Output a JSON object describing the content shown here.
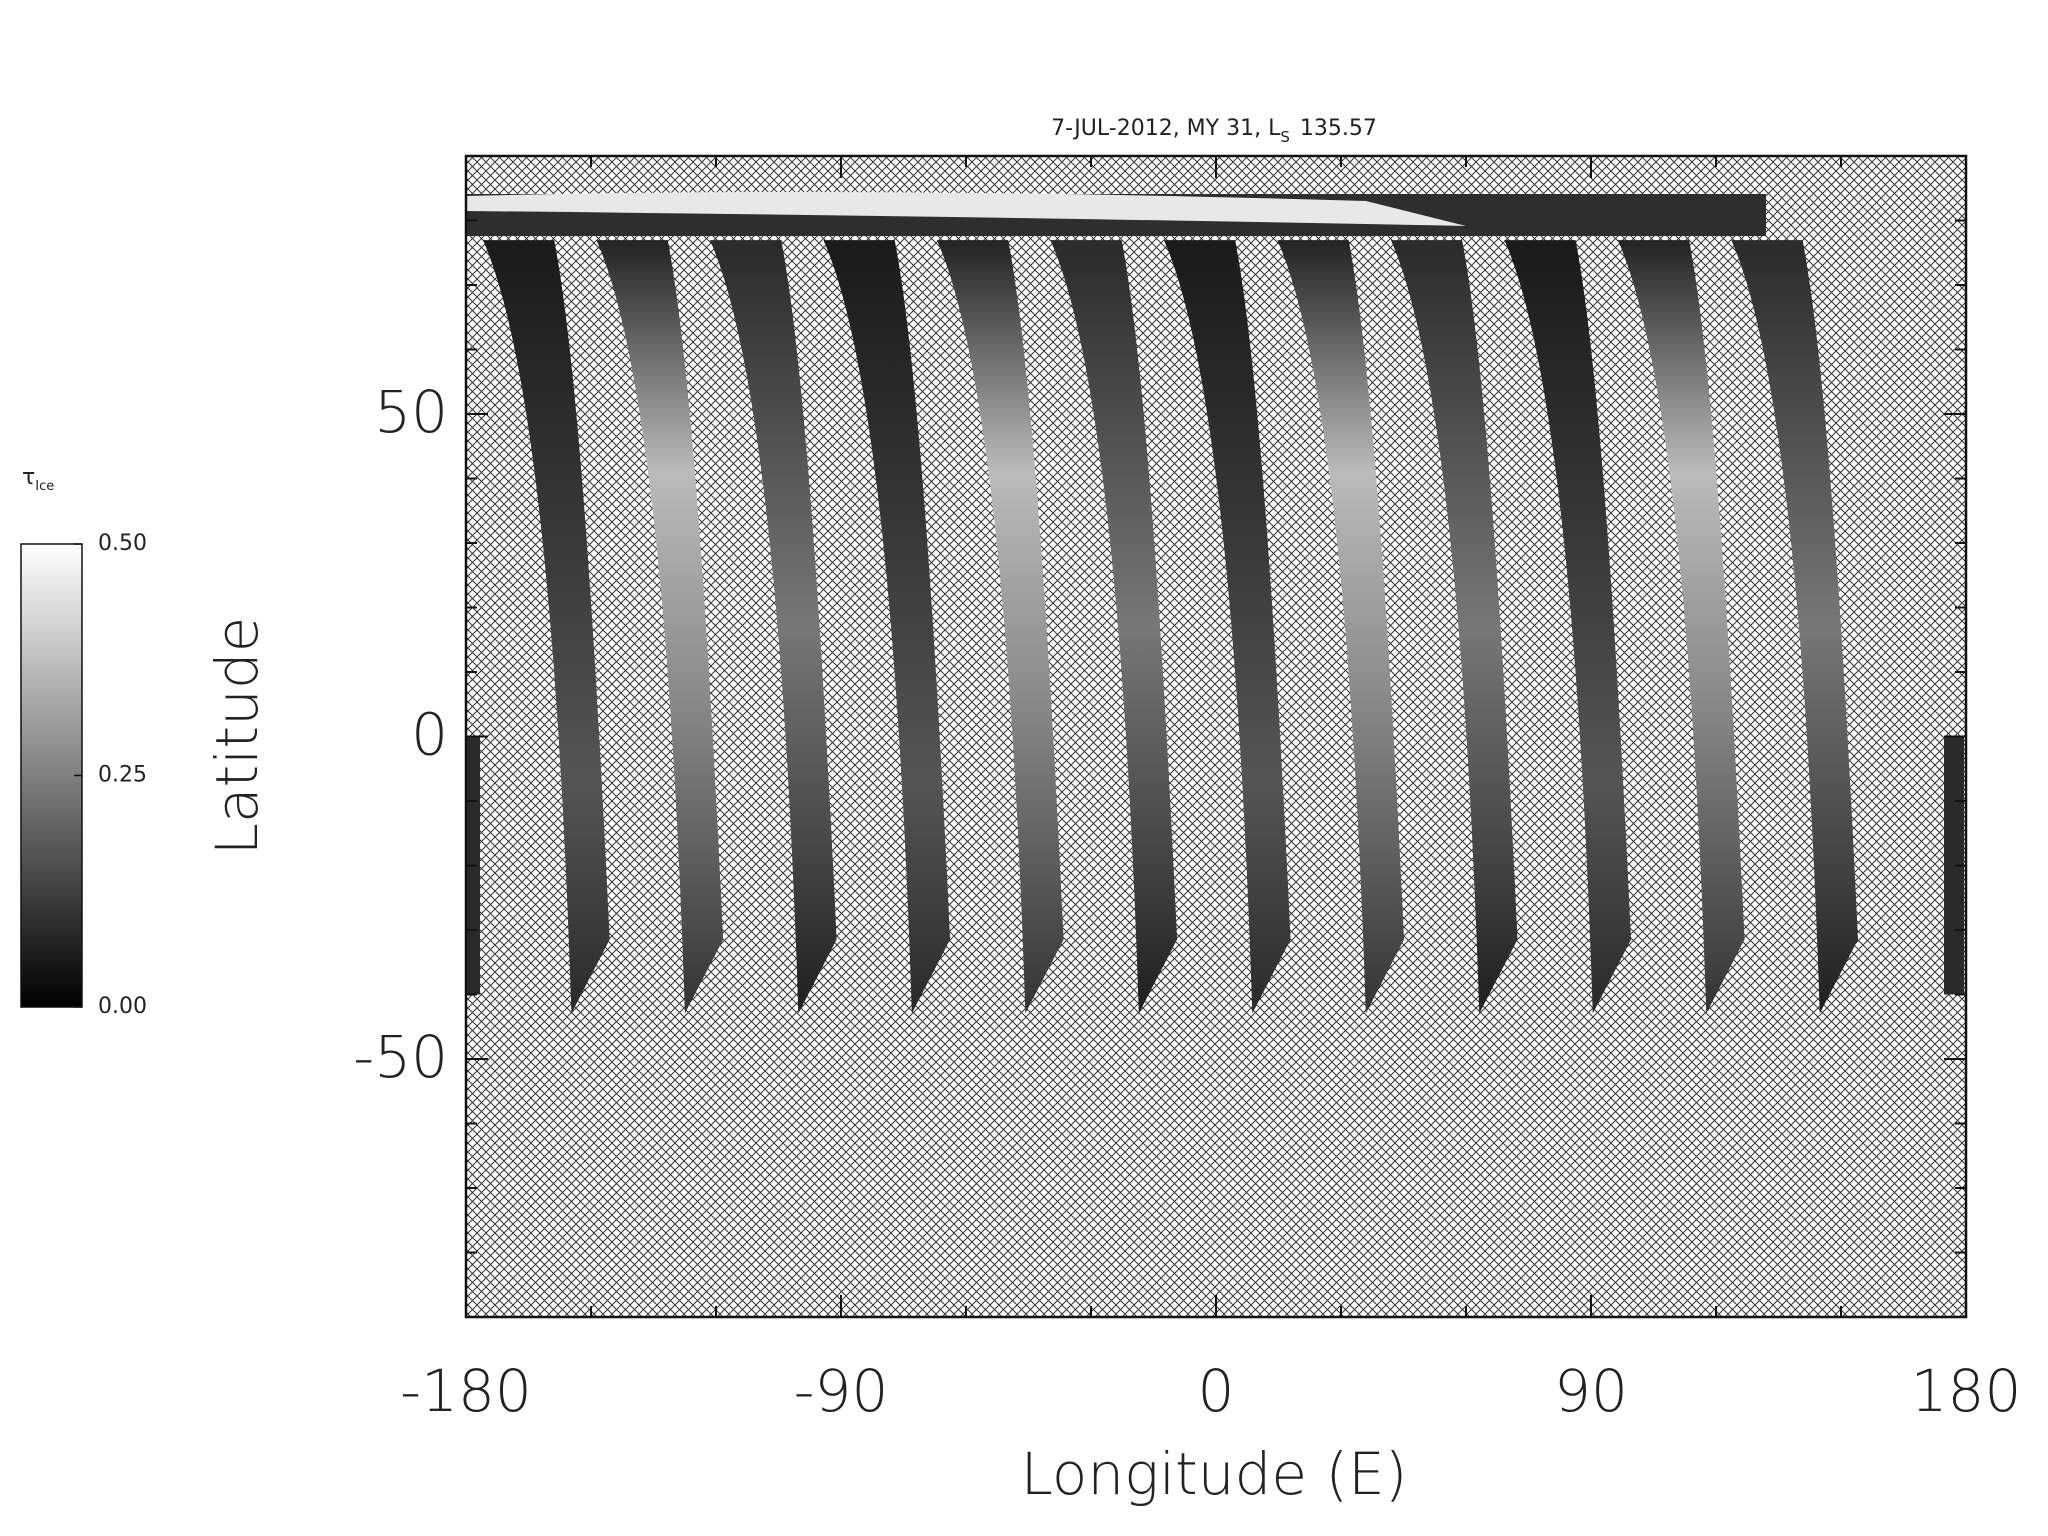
{
  "chart_data": {
    "type": "map",
    "title_parts": [
      "7-JUL-2012, MY 31,  L",
      "S",
      "135.57"
    ],
    "xlabel": "Longitude (E)",
    "ylabel": "Latitude",
    "xlim": [
      -180,
      180
    ],
    "ylim": [
      -90,
      90
    ],
    "xticks": [
      -180,
      -90,
      0,
      90,
      180
    ],
    "yticks": [
      -50,
      0,
      50
    ],
    "xminorticks": [
      -150,
      -120,
      -60,
      -30,
      30,
      60,
      120,
      150
    ],
    "yminorticks": [
      -80,
      -70,
      -60,
      -40,
      -30,
      -20,
      -10,
      10,
      20,
      30,
      40,
      60,
      70,
      80
    ],
    "colorbar": {
      "label": "τ",
      "label_subscript": "Ice",
      "clim": [
        0,
        0.5
      ],
      "ticks": [
        {
          "value": 0,
          "label": "0.00"
        },
        {
          "value": 0.25,
          "label": "0.25"
        },
        {
          "value": 0.5,
          "label": "0.50"
        }
      ]
    }
  }
}
